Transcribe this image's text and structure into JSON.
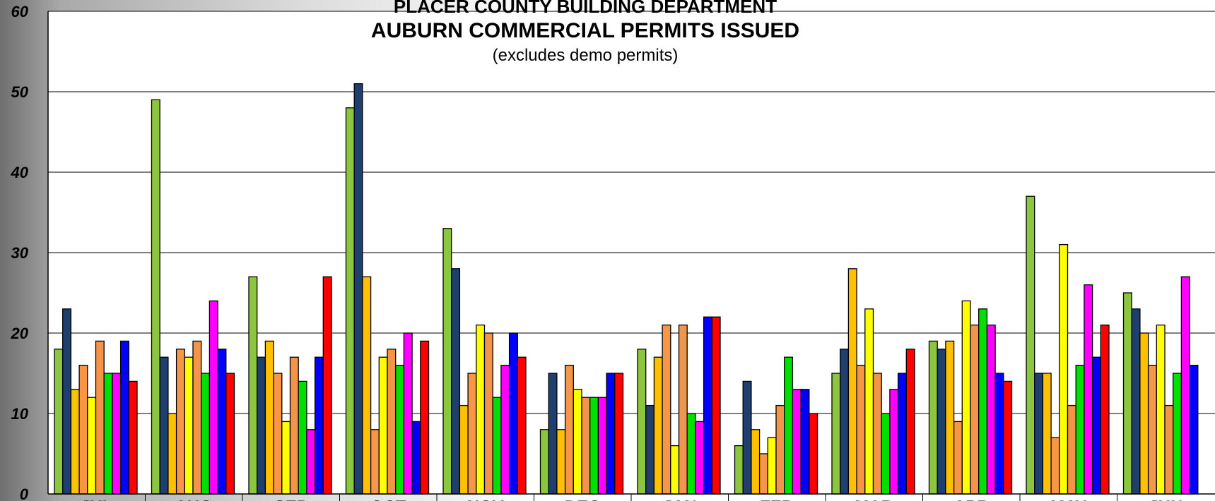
{
  "chart_data": {
    "type": "bar",
    "title": "PLACER COUNTY BUILDING DEPARTMENT",
    "subtitle": "AUBURN COMMERCIAL PERMITS ISSUED",
    "note": "(excludes demo permits)",
    "xlabel": "",
    "ylabel": "",
    "ylim": [
      0,
      60
    ],
    "yticks": [
      0,
      10,
      20,
      30,
      40,
      50,
      60
    ],
    "grid": true,
    "categories": [
      "JUL",
      "AUG",
      "SEP",
      "OCT",
      "NOV",
      "DEC",
      "JAN",
      "FEB",
      "MAR",
      "APR",
      "MAY",
      "JUN"
    ],
    "series": [
      {
        "color": "#8cc63f",
        "values": [
          18,
          49,
          27,
          48,
          33,
          8,
          18,
          6,
          15,
          19,
          37,
          25
        ]
      },
      {
        "color": "#1f3f6f",
        "values": [
          23,
          17,
          17,
          51,
          28,
          15,
          11,
          14,
          18,
          18,
          15,
          23
        ]
      },
      {
        "color": "#ffc000",
        "values": [
          13,
          10,
          19,
          27,
          11,
          8,
          17,
          8,
          28,
          19,
          15,
          20
        ]
      },
      {
        "color": "#f79646",
        "values": [
          16,
          18,
          15,
          8,
          15,
          16,
          21,
          5,
          16,
          9,
          7,
          16
        ]
      },
      {
        "color": "#ffff00",
        "values": [
          12,
          17,
          9,
          17,
          21,
          13,
          6,
          7,
          23,
          24,
          31,
          21
        ]
      },
      {
        "color": "#f4944a",
        "values": [
          19,
          19,
          17,
          18,
          20,
          12,
          21,
          11,
          15,
          21,
          11,
          11
        ]
      },
      {
        "color": "#00e000",
        "values": [
          15,
          15,
          14,
          16,
          12,
          12,
          10,
          17,
          10,
          23,
          16,
          15
        ]
      },
      {
        "color": "#ff00ff",
        "values": [
          15,
          24,
          8,
          20,
          16,
          12,
          9,
          13,
          13,
          21,
          26,
          27
        ]
      },
      {
        "color": "#0000ff",
        "values": [
          19,
          18,
          17,
          9,
          20,
          15,
          22,
          13,
          15,
          15,
          17,
          16
        ]
      },
      {
        "color": "#ff0000",
        "values": [
          14,
          15,
          27,
          19,
          17,
          15,
          22,
          10,
          18,
          14,
          21,
          null
        ]
      }
    ]
  }
}
